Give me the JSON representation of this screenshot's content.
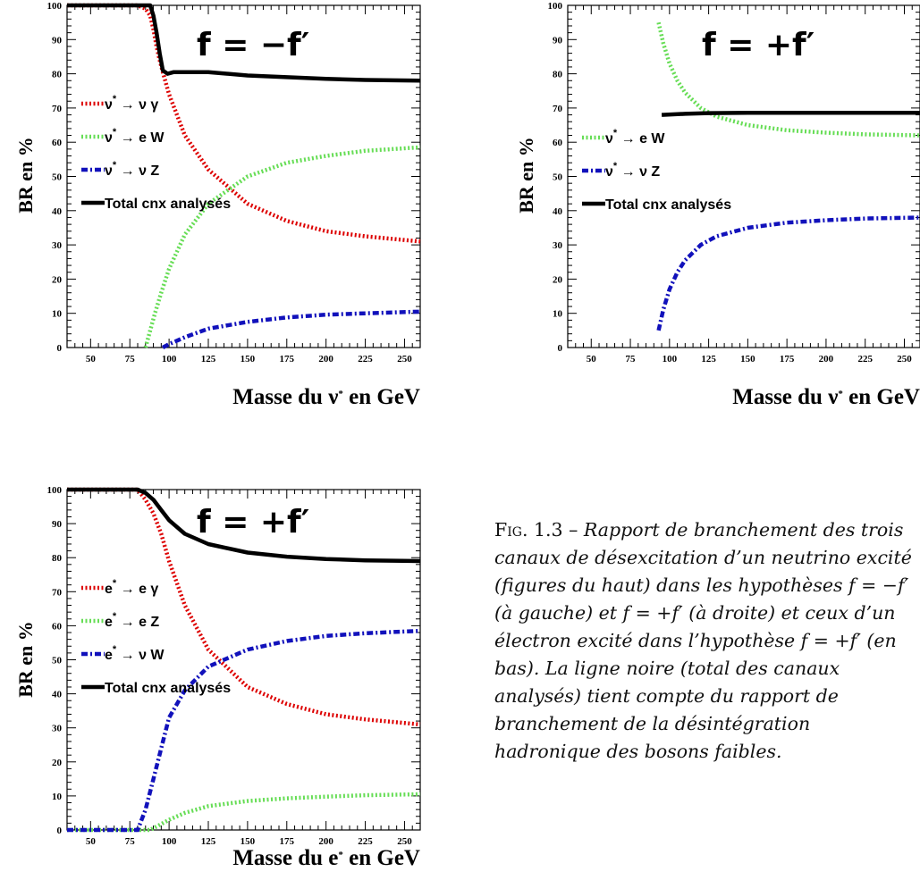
{
  "chart_data": [
    {
      "type": "line",
      "annotation": "f = −f′",
      "ylabel": "BR en %",
      "xlabel": "Masse du ν* en GeV",
      "xlim": [
        35,
        260
      ],
      "ylim": [
        0,
        100
      ],
      "xticks": [
        50,
        75,
        100,
        125,
        150,
        175,
        200,
        225,
        250
      ],
      "yticks": [
        0,
        10,
        20,
        30,
        40,
        50,
        60,
        70,
        80,
        90,
        100
      ],
      "legend_placement": "left",
      "series": [
        {
          "name": "ν* → ν γ",
          "color": "#dd0000",
          "style": "dotted",
          "x": [
            35,
            80,
            85,
            88,
            90,
            92,
            94,
            96,
            100,
            110,
            125,
            150,
            175,
            200,
            225,
            260
          ],
          "y": [
            100,
            100,
            99,
            97,
            93,
            88,
            84,
            80.5,
            74,
            62,
            52,
            42,
            37,
            34,
            32.5,
            31
          ]
        },
        {
          "name": "ν* → e W",
          "color": "#66dd55",
          "style": "dotted",
          "x": [
            85,
            88,
            91,
            95,
            100,
            110,
            125,
            150,
            175,
            200,
            225,
            260
          ],
          "y": [
            0,
            5,
            10,
            16,
            23,
            33,
            42,
            50,
            54,
            56,
            57.5,
            58.5
          ]
        },
        {
          "name": "ν* → ν Z",
          "color": "#1111bb",
          "style": "dashdot",
          "x": [
            96,
            100,
            110,
            125,
            150,
            175,
            200,
            225,
            260
          ],
          "y": [
            0,
            1,
            3,
            5.5,
            7.5,
            8.8,
            9.6,
            10,
            10.5
          ]
        },
        {
          "name": "Total cnx analysés",
          "color": "#000000",
          "style": "solid",
          "x": [
            35,
            88,
            90,
            92,
            94,
            96,
            99,
            103,
            110,
            125,
            150,
            175,
            200,
            225,
            260
          ],
          "y": [
            100,
            100,
            97,
            92,
            86,
            81,
            80,
            80.5,
            80.5,
            80.5,
            79.5,
            79,
            78.5,
            78.2,
            78
          ]
        }
      ]
    },
    {
      "type": "line",
      "annotation": "f = +f′",
      "ylabel": "BR en %",
      "xlabel": "Masse du ν* en GeV",
      "xlim": [
        35,
        260
      ],
      "ylim": [
        0,
        100
      ],
      "xticks": [
        50,
        75,
        100,
        125,
        150,
        175,
        200,
        225,
        250
      ],
      "yticks": [
        0,
        10,
        20,
        30,
        40,
        50,
        60,
        70,
        80,
        90,
        100
      ],
      "legend_placement": "left",
      "series": [
        {
          "name": "ν* → e W",
          "color": "#66dd55",
          "style": "dotted",
          "x": [
            93,
            96,
            100,
            105,
            110,
            120,
            130,
            150,
            175,
            200,
            225,
            260
          ],
          "y": [
            95,
            89,
            83,
            78,
            74.5,
            70,
            67.5,
            65,
            63.5,
            62.8,
            62.3,
            62
          ]
        },
        {
          "name": "ν* → ν Z",
          "color": "#1111bb",
          "style": "dashdot",
          "x": [
            93,
            96,
            100,
            105,
            110,
            120,
            130,
            150,
            175,
            200,
            225,
            260
          ],
          "y": [
            5,
            11,
            17,
            22,
            25.5,
            30,
            32.5,
            35,
            36.5,
            37.2,
            37.7,
            38
          ]
        },
        {
          "name": "Total cnx analysés",
          "color": "#000000",
          "style": "solid",
          "x": [
            95,
            110,
            125,
            150,
            175,
            200,
            225,
            260
          ],
          "y": [
            68,
            68.3,
            68.5,
            68.6,
            68.6,
            68.6,
            68.6,
            68.6
          ]
        }
      ]
    },
    {
      "type": "line",
      "annotation": "f = +f′",
      "ylabel": "BR en %",
      "xlabel": "Masse du e* en GeV",
      "xlim": [
        35,
        260
      ],
      "ylim": [
        0,
        100
      ],
      "xticks": [
        50,
        75,
        100,
        125,
        150,
        175,
        200,
        225,
        250
      ],
      "yticks": [
        0,
        10,
        20,
        30,
        40,
        50,
        60,
        70,
        80,
        90,
        100
      ],
      "legend_placement": "left",
      "series": [
        {
          "name": "e* → e γ",
          "color": "#dd0000",
          "style": "dotted",
          "x": [
            35,
            80,
            85,
            90,
            95,
            100,
            110,
            125,
            150,
            175,
            200,
            225,
            260
          ],
          "y": [
            100,
            100,
            97,
            93,
            87,
            79,
            66,
            53,
            42,
            37,
            34,
            32.5,
            31
          ]
        },
        {
          "name": "e* → e Z",
          "color": "#66dd55",
          "style": "dotted",
          "x": [
            35,
            88,
            92,
            100,
            110,
            125,
            150,
            175,
            200,
            225,
            260
          ],
          "y": [
            0,
            0,
            1,
            3,
            5,
            7,
            8.5,
            9.3,
            9.8,
            10.2,
            10.5
          ]
        },
        {
          "name": "e* → ν W",
          "color": "#1111bb",
          "style": "dashdot",
          "x": [
            35,
            80,
            85,
            90,
            95,
            100,
            110,
            125,
            150,
            175,
            200,
            225,
            260
          ],
          "y": [
            0,
            0,
            6,
            15,
            24,
            33,
            41,
            48,
            53,
            55.5,
            57,
            57.8,
            58.5
          ]
        },
        {
          "name": "Total cnx analysés",
          "color": "#000000",
          "style": "solid",
          "x": [
            35,
            80,
            85,
            90,
            95,
            100,
            110,
            125,
            150,
            175,
            200,
            225,
            260
          ],
          "y": [
            100,
            100,
            99,
            97,
            94,
            91,
            87,
            84,
            81.5,
            80.3,
            79.6,
            79.2,
            79
          ]
        }
      ]
    }
  ],
  "caption": {
    "label": "Fig. 1.3 –",
    "text": "Rapport de branchement des trois canaux de désexcitation d’un neutrino excité (figures du haut) dans les hypothèses f = −f′ (à gauche) et f = +f′ (à droite) et ceux d’un électron excité dans l’hypothèse f = +f′ (en bas). La ligne noire (total des canaux analysés) tient compte du rapport de branchement de la désintégration hadronique des bosons faibles."
  }
}
